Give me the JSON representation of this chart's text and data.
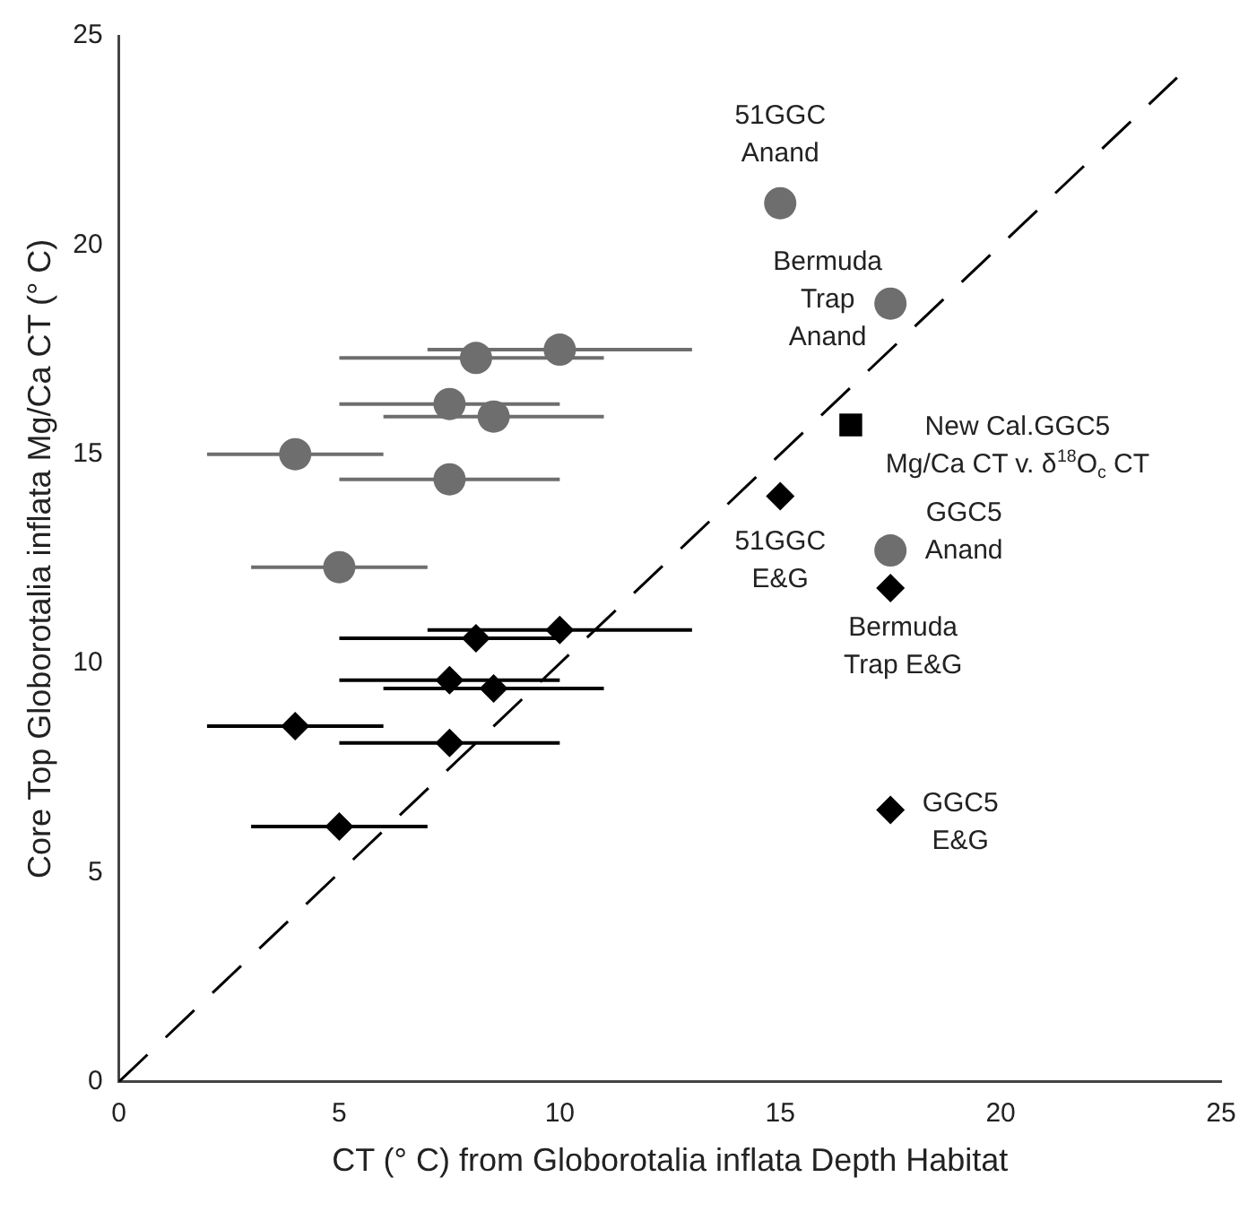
{
  "chart_data": {
    "type": "scatter",
    "xlabel": "CT (° C) from Globorotalia inflata Depth Habitat",
    "ylabel": "Core Top Globorotalia inflata Mg/Ca CT (° C)",
    "xlim": [
      0,
      25
    ],
    "xticks": [
      0,
      5,
      10,
      15,
      20,
      25
    ],
    "ylim": [
      0,
      25
    ],
    "yticks": [
      0,
      5,
      10,
      15,
      20,
      25
    ],
    "grid": false,
    "legend": false,
    "series": [
      {
        "type": "line",
        "color": "#000000",
        "line_style": "dashed",
        "marker": "none",
        "x": [
          0,
          24
        ],
        "values": [
          0,
          24
        ]
      },
      {
        "color": "#6e6e6e",
        "marker": "circle",
        "x": [
          5,
          4,
          7.5,
          7.5,
          8.5,
          8.1,
          10,
          15,
          17.5,
          17.5
        ],
        "values": [
          12.3,
          15.0,
          14.4,
          16.2,
          15.9,
          17.3,
          17.5,
          21.0,
          18.6,
          12.7
        ],
        "xerrors": [
          2,
          2,
          [
            5,
            10
          ],
          [
            5,
            10
          ],
          [
            6,
            11
          ],
          [
            5,
            11
          ],
          [
            7,
            13
          ],
          null,
          null,
          null
        ]
      },
      {
        "color": "#000000",
        "marker": "diamond",
        "x": [
          10,
          8.1,
          7.5,
          8.5,
          4,
          7.5,
          5,
          15,
          17.5,
          17.5
        ],
        "values": [
          10.8,
          10.6,
          9.6,
          9.4,
          8.5,
          8.1,
          6.1,
          14.0,
          11.8,
          6.5
        ],
        "xerrors": [
          [
            7,
            13
          ],
          [
            5,
            10
          ],
          [
            5,
            10
          ],
          [
            6,
            11
          ],
          2,
          [
            5,
            10
          ],
          2,
          null,
          null,
          null
        ]
      },
      {
        "color": "#000000",
        "marker": "square",
        "x": [
          16.6
        ],
        "values": [
          15.7
        ]
      }
    ],
    "annotations": [
      {
        "text": "51GGC\nAnand",
        "x": 15,
        "y": 21.0
      },
      {
        "text": "Bermuda\nTrap\nAnand",
        "x": 17.5,
        "y": 18.6
      },
      {
        "text": "New Cal.GGC5\nMg/Ca CT v. δ$^{18}$O$_{c}$ CT",
        "x": 16.6,
        "y": 15.7
      },
      {
        "text": "51GGC\nE&G",
        "x": 15,
        "y": 14.0
      },
      {
        "text": "GGC5\nAnand",
        "x": 17.5,
        "y": 12.7
      },
      {
        "text": "Bermuda\nTrap E&G",
        "x": 17.5,
        "y": 11.8
      },
      {
        "text": "GGC5\nE&G",
        "x": 17.5,
        "y": 6.5
      }
    ]
  }
}
